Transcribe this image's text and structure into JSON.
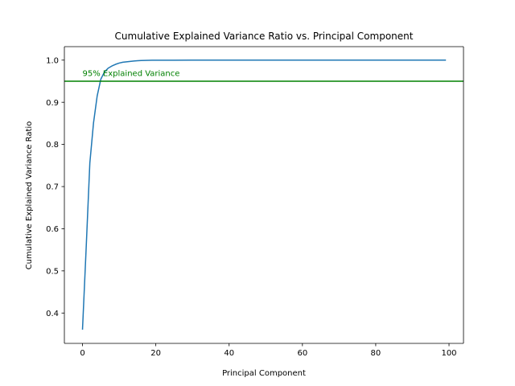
{
  "chart_data": {
    "type": "line",
    "title": "Cumulative Explained Variance Ratio vs. Principal Component",
    "xlabel": "Principal Component",
    "ylabel": "Cumulative Explained Variance Ratio",
    "xlim": [
      -4.95,
      103.95
    ],
    "ylim": [
      0.328,
      1.032
    ],
    "xticks": [
      0,
      20,
      40,
      60,
      80,
      100
    ],
    "xtick_labels": [
      "0",
      "20",
      "40",
      "60",
      "80",
      "100"
    ],
    "yticks": [
      0.4,
      0.5,
      0.6,
      0.7,
      0.8,
      0.9,
      1.0
    ],
    "ytick_labels": [
      "0.4",
      "0.5",
      "0.6",
      "0.7",
      "0.8",
      "0.9",
      "1.0"
    ],
    "grid": false,
    "series": [
      {
        "color": "#1f77b4",
        "x": [
          0,
          1,
          2,
          3,
          4,
          5,
          6,
          7,
          8,
          9,
          10,
          11,
          12,
          13,
          14,
          15,
          16,
          17,
          18,
          19,
          20,
          25,
          30,
          40,
          50,
          60,
          70,
          80,
          90,
          99
        ],
        "y": [
          0.362,
          0.555,
          0.756,
          0.851,
          0.915,
          0.955,
          0.972,
          0.981,
          0.986,
          0.99,
          0.993,
          0.995,
          0.996,
          0.997,
          0.998,
          0.9985,
          0.999,
          0.9993,
          0.9995,
          0.9997,
          0.9998,
          0.9999,
          1.0,
          1.0,
          1.0,
          1.0,
          1.0,
          1.0,
          1.0,
          1.0
        ]
      }
    ],
    "hline": {
      "y": 0.95,
      "color": "#008000",
      "label": "95% Explained Variance"
    }
  }
}
